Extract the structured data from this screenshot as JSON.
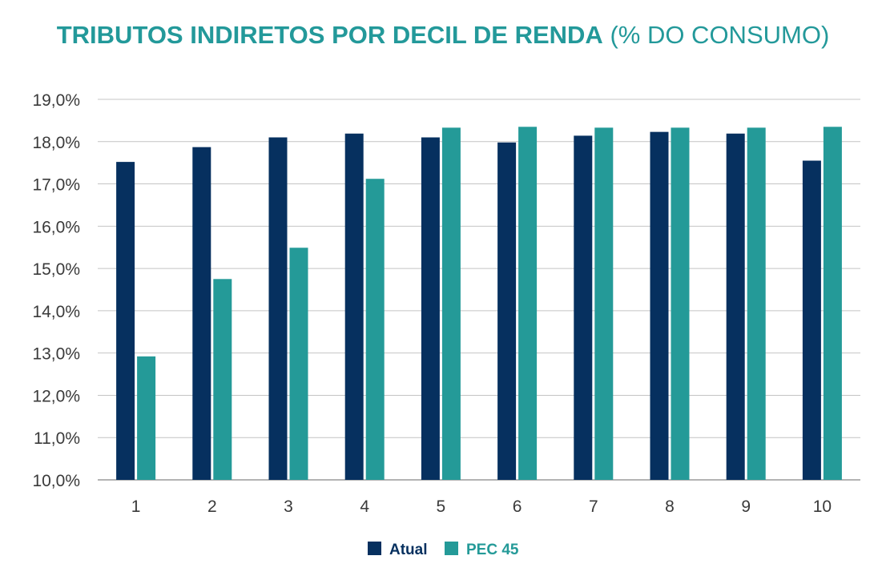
{
  "chart_data": {
    "type": "bar",
    "title": "TRIBUTOS INDIRETOS POR DECIL DE RENDA",
    "subtitle": "(% DO CONSUMO)",
    "xlabel": "",
    "ylabel": "",
    "categories": [
      "1",
      "2",
      "3",
      "4",
      "5",
      "6",
      "7",
      "8",
      "9",
      "10"
    ],
    "series": [
      {
        "name": "Atual",
        "color": "#06305f",
        "values": [
          17.52,
          17.87,
          18.1,
          18.19,
          18.1,
          17.98,
          18.14,
          18.23,
          18.19,
          17.55
        ]
      },
      {
        "name": "PEC 45",
        "color": "#249a98",
        "values": [
          12.92,
          14.75,
          15.49,
          17.12,
          18.33,
          18.35,
          18.33,
          18.33,
          18.33,
          18.35
        ]
      }
    ],
    "ylim": [
      10,
      19
    ],
    "yticks": [
      "10,0%",
      "11,0%",
      "12,0%",
      "13,0%",
      "14,0%",
      "15,0%",
      "16,0%",
      "17,0%",
      "18,0%",
      "19,0%"
    ],
    "grid": true,
    "legend_position": "bottom-center"
  }
}
